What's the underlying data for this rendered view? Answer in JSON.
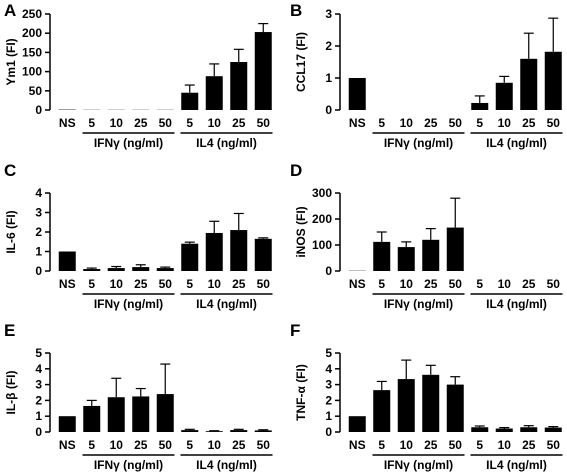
{
  "colors": {
    "bar": "#000000",
    "axis": "#000000",
    "background": "#ffffff"
  },
  "chart_data": [
    {
      "panel": "A",
      "type": "bar",
      "ylabel": "Ym1 (FI)",
      "categories": [
        "NS",
        "5",
        "10",
        "25",
        "50",
        "5",
        "10",
        "25",
        "50"
      ],
      "groups": [
        {
          "label": "IFNγ (ng/ml)",
          "start": 1,
          "end": 4
        },
        {
          "label": "IL4 (ng/ml)",
          "start": 5,
          "end": 8
        }
      ],
      "values": [
        1,
        0.5,
        0.5,
        0.5,
        0.5,
        45,
        88,
        125,
        203
      ],
      "errors": [
        0,
        0,
        0,
        0,
        0,
        20,
        32,
        33,
        22
      ],
      "ylim": [
        0,
        250
      ],
      "yticks": [
        0,
        50,
        100,
        150,
        200,
        250
      ]
    },
    {
      "panel": "B",
      "type": "bar",
      "ylabel": "CCL17 (FI)",
      "categories": [
        "NS",
        "5",
        "10",
        "25",
        "50",
        "5",
        "10",
        "25",
        "50"
      ],
      "groups": [
        {
          "label": "IFNγ (ng/ml)",
          "start": 1,
          "end": 4
        },
        {
          "label": "IL4 (ng/ml)",
          "start": 5,
          "end": 8
        }
      ],
      "values": [
        1,
        0,
        0,
        0,
        0,
        0.22,
        0.85,
        1.6,
        1.82
      ],
      "errors": [
        0,
        0,
        0,
        0,
        0,
        0.22,
        0.2,
        0.8,
        1.05
      ],
      "ylim": [
        0,
        3
      ],
      "yticks": [
        0,
        1,
        2,
        3
      ]
    },
    {
      "panel": "C",
      "type": "bar",
      "ylabel": "IL-6 (FI)",
      "categories": [
        "NS",
        "5",
        "10",
        "25",
        "50",
        "5",
        "10",
        "25",
        "50"
      ],
      "groups": [
        {
          "label": "IFNγ (ng/ml)",
          "start": 1,
          "end": 4
        },
        {
          "label": "IL4 (ng/ml)",
          "start": 5,
          "end": 8
        }
      ],
      "values": [
        1,
        0.1,
        0.15,
        0.2,
        0.15,
        1.4,
        1.95,
        2.1,
        1.65
      ],
      "errors": [
        0,
        0.05,
        0.08,
        0.12,
        0.05,
        0.08,
        0.6,
        0.85,
        0.05
      ],
      "ylim": [
        0,
        4
      ],
      "yticks": [
        0,
        1,
        2,
        3,
        4
      ]
    },
    {
      "panel": "D",
      "type": "bar",
      "ylabel": "iNOS (FI)",
      "categories": [
        "NS",
        "5",
        "10",
        "25",
        "50",
        "5",
        "10",
        "25",
        "50"
      ],
      "groups": [
        {
          "label": "IFNγ (ng/ml)",
          "start": 1,
          "end": 4
        },
        {
          "label": "IL4 (ng/ml)",
          "start": 5,
          "end": 8
        }
      ],
      "values": [
        1,
        112,
        92,
        120,
        167,
        0,
        0,
        0,
        0
      ],
      "errors": [
        0,
        38,
        20,
        43,
        113,
        0,
        0,
        0,
        0
      ],
      "ylim": [
        0,
        300
      ],
      "yticks": [
        0,
        100,
        200,
        300
      ]
    },
    {
      "panel": "E",
      "type": "bar",
      "ylabel": "IL-β (FI)",
      "categories": [
        "NS",
        "5",
        "10",
        "25",
        "50",
        "5",
        "10",
        "25",
        "50"
      ],
      "groups": [
        {
          "label": "IFNγ (ng/ml)",
          "start": 1,
          "end": 4
        },
        {
          "label": "IL4 (ng/ml)",
          "start": 5,
          "end": 8
        }
      ],
      "values": [
        1,
        1.65,
        2.2,
        2.25,
        2.4,
        0.12,
        0.05,
        0.12,
        0.1
      ],
      "errors": [
        0,
        0.35,
        1.2,
        0.5,
        1.9,
        0.05,
        0.03,
        0.05,
        0.04
      ],
      "ylim": [
        0,
        5
      ],
      "yticks": [
        0,
        1,
        2,
        3,
        4,
        5
      ]
    },
    {
      "panel": "F",
      "type": "bar",
      "ylabel": "TNF-α (FI)",
      "categories": [
        "NS",
        "5",
        "10",
        "25",
        "50",
        "5",
        "10",
        "25",
        "50"
      ],
      "groups": [
        {
          "label": "IFNγ (ng/ml)",
          "start": 1,
          "end": 4
        },
        {
          "label": "IL4 (ng/ml)",
          "start": 5,
          "end": 8
        }
      ],
      "values": [
        1,
        2.65,
        3.35,
        3.62,
        3.0,
        0.3,
        0.22,
        0.3,
        0.28
      ],
      "errors": [
        0,
        0.55,
        1.2,
        0.6,
        0.5,
        0.08,
        0.06,
        0.1,
        0.06
      ],
      "ylim": [
        0,
        5
      ],
      "yticks": [
        0,
        1,
        2,
        3,
        4,
        5
      ]
    }
  ]
}
